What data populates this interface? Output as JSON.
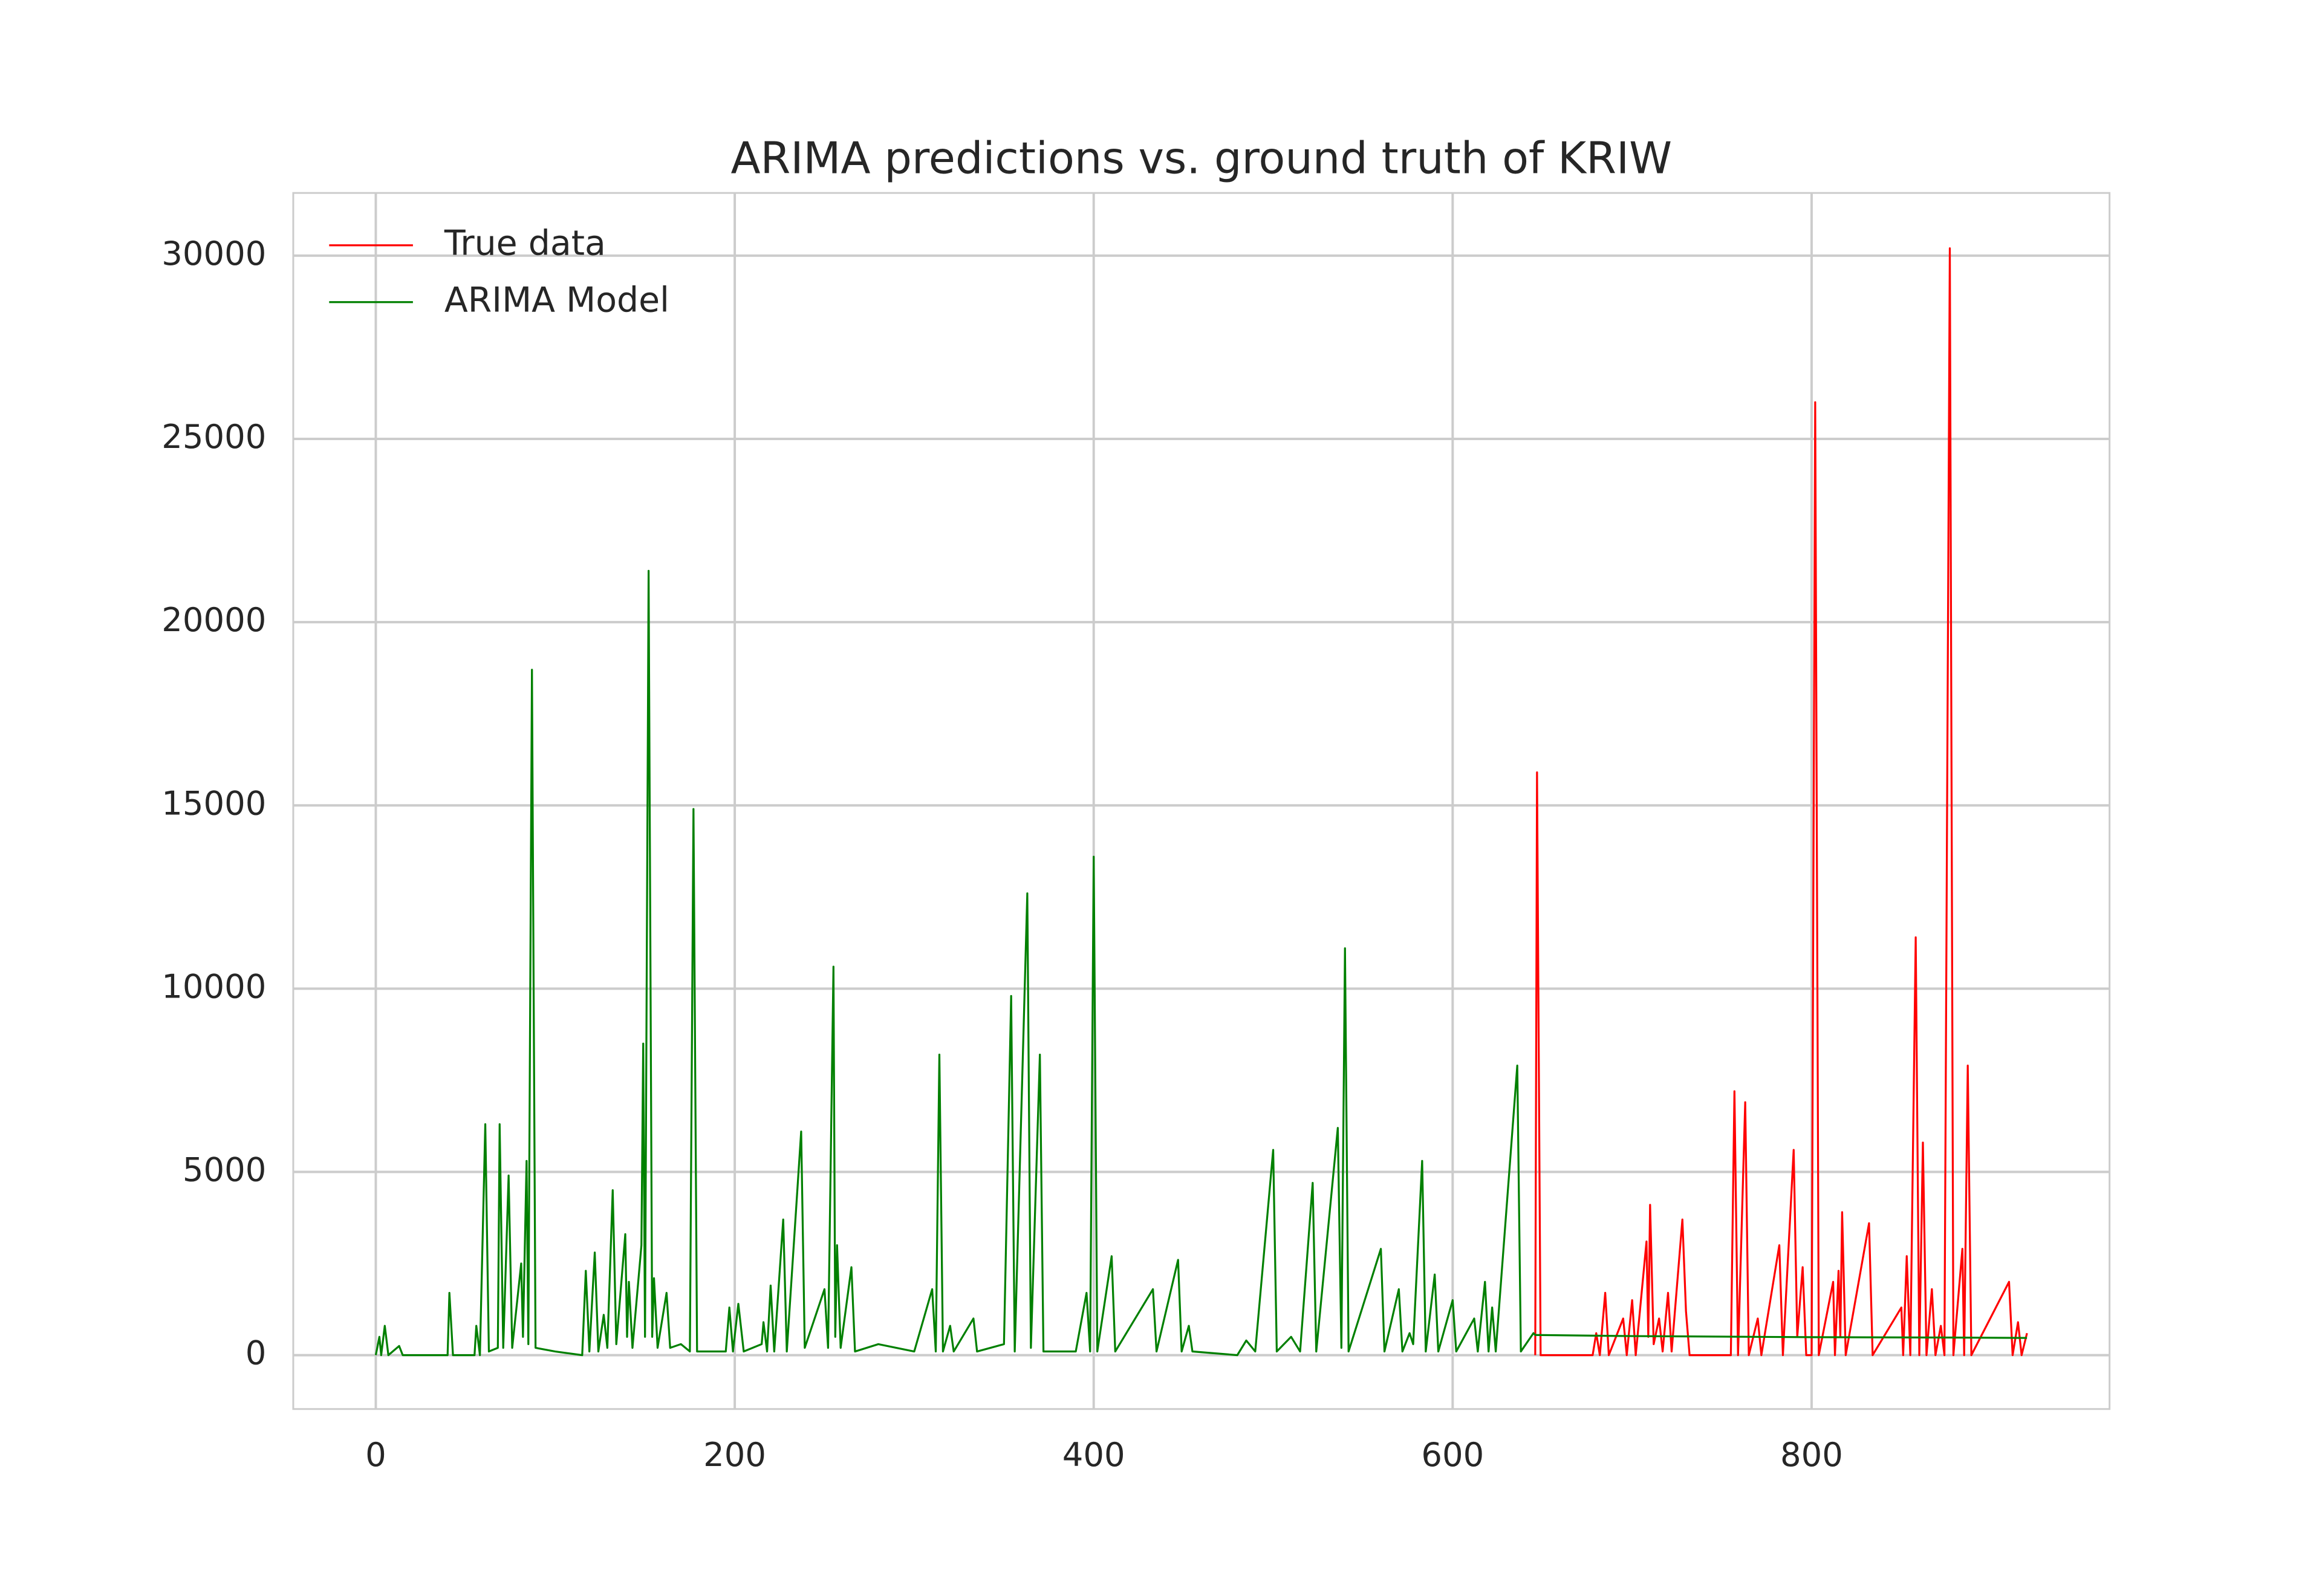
{
  "chart_data": {
    "type": "line",
    "title": "ARIMA predictions vs. ground truth of KRIW",
    "xlim": [
      -46,
      966
    ],
    "xticks": [
      0,
      200,
      400,
      600,
      800
    ],
    "ylim": [
      -1470,
      31710
    ],
    "yticks": [
      0,
      5000,
      10000,
      15000,
      20000,
      25000,
      30000
    ],
    "grid": true,
    "legend": "upper left",
    "series": [
      {
        "name": "True data",
        "color": "#ff0000",
        "x": [
          646,
          647,
          649,
          678,
          680,
          682,
          685,
          687,
          695,
          697,
          700,
          702,
          708,
          709,
          710,
          712,
          715,
          717,
          720,
          722,
          728,
          730,
          732,
          755,
          757,
          759,
          763,
          765,
          770,
          772,
          782,
          784,
          790,
          792,
          795,
          797,
          800,
          802,
          804,
          812,
          813,
          815,
          816,
          817,
          819,
          832,
          834,
          850,
          851,
          853,
          855,
          858,
          860,
          862,
          864,
          867,
          869,
          872,
          874,
          877,
          879,
          884,
          885,
          887,
          889,
          910,
          912,
          915,
          917,
          920
        ],
        "values": [
          0,
          15900,
          0,
          0,
          600,
          0,
          1700,
          0,
          1000,
          0,
          1500,
          0,
          3100,
          500,
          4100,
          300,
          1000,
          100,
          1700,
          100,
          3700,
          1200,
          0,
          0,
          7200,
          0,
          6900,
          0,
          1000,
          0,
          3000,
          0,
          5600,
          500,
          2400,
          0,
          0,
          26000,
          0,
          2000,
          0,
          2300,
          500,
          3900,
          0,
          3600,
          0,
          1300,
          0,
          2700,
          0,
          11400,
          0,
          5800,
          0,
          1800,
          0,
          800,
          0,
          30200,
          0,
          2900,
          0,
          7900,
          0,
          2000,
          0,
          900,
          0,
          600
        ]
      },
      {
        "name": "ARIMA Model",
        "color": "#008000",
        "x": [
          0,
          2,
          3,
          5,
          7,
          13,
          15,
          40,
          41,
          43,
          55,
          56,
          58,
          61,
          63,
          68,
          69,
          71,
          74,
          76,
          81,
          82,
          84,
          85,
          87,
          89,
          100,
          115,
          117,
          119,
          122,
          124,
          127,
          129,
          132,
          134,
          139,
          140,
          141,
          143,
          148,
          149,
          150,
          152,
          154,
          155,
          157,
          162,
          164,
          170,
          175,
          177,
          179,
          195,
          197,
          199,
          202,
          205,
          215,
          216,
          218,
          220,
          222,
          227,
          229,
          237,
          239,
          250,
          252,
          255,
          256,
          257,
          259,
          265,
          267,
          280,
          300,
          310,
          312,
          314,
          316,
          320,
          322,
          333,
          335,
          350,
          354,
          356,
          363,
          365,
          370,
          372,
          390,
          396,
          398,
          400,
          402,
          410,
          412,
          433,
          435,
          447,
          449,
          453,
          455,
          480,
          485,
          490,
          500,
          502,
          510,
          515,
          522,
          524,
          536,
          538,
          540,
          542,
          560,
          562,
          570,
          572,
          576,
          578,
          583,
          585,
          590,
          592,
          600,
          602,
          612,
          614,
          618,
          620,
          622,
          624,
          636,
          638,
          645,
          646,
          700,
          800,
          880,
          920
        ],
        "values": [
          0,
          500,
          0,
          800,
          0,
          250,
          0,
          0,
          1700,
          0,
          0,
          800,
          0,
          6300,
          100,
          200,
          6300,
          200,
          4900,
          200,
          2500,
          500,
          5300,
          300,
          18700,
          200,
          100,
          0,
          2300,
          100,
          2800,
          100,
          1100,
          200,
          4500,
          300,
          3300,
          500,
          2000,
          200,
          3000,
          8500,
          500,
          21400,
          500,
          2100,
          200,
          1700,
          200,
          300,
          100,
          14900,
          100,
          100,
          1300,
          100,
          1400,
          100,
          300,
          900,
          100,
          1900,
          100,
          3700,
          100,
          6100,
          200,
          1800,
          200,
          10600,
          500,
          3000,
          200,
          2400,
          100,
          300,
          100,
          1800,
          100,
          8200,
          100,
          800,
          100,
          1000,
          100,
          300,
          9800,
          100,
          12600,
          200,
          8200,
          100,
          100,
          1700,
          100,
          13600,
          100,
          2700,
          100,
          1800,
          100,
          2600,
          100,
          800,
          100,
          0,
          400,
          100,
          5600,
          100,
          500,
          100,
          4700,
          100,
          6200,
          200,
          11100,
          100,
          2900,
          100,
          1800,
          100,
          600,
          300,
          5300,
          100,
          2200,
          100,
          1500,
          100,
          1000,
          100,
          2000,
          100,
          1300,
          100,
          7900,
          100,
          600,
          550,
          520,
          490,
          480,
          470
        ]
      }
    ]
  }
}
